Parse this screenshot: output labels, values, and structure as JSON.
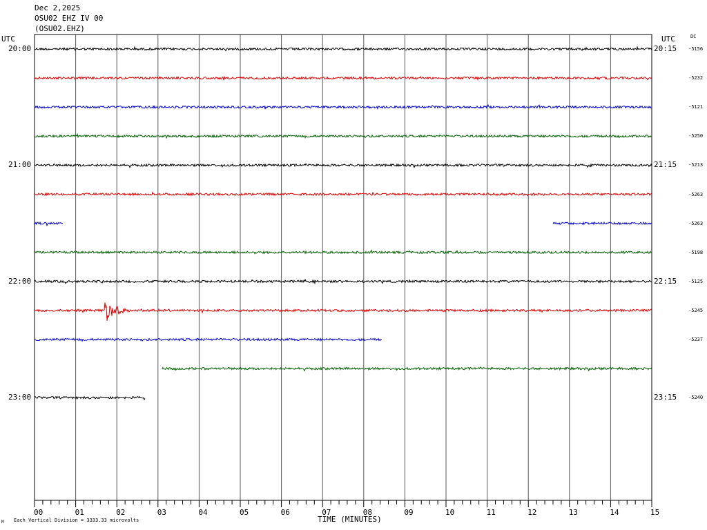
{
  "header": {
    "date": "Dec 2,2025",
    "station": "OSU02 EHZ IV 00",
    "code": "(OSU02.EHZ)"
  },
  "left_axis_label": "UTC",
  "right_axis_label": "UTC",
  "dc_label": "DC",
  "footer_text": "Each Vertical Division = 3333.33 microvolts",
  "corner_glyph": "M",
  "colors": {
    "black": "#000000",
    "red": "#e00000",
    "blue": "#0000d0",
    "green": "#006400"
  },
  "chart_data": {
    "type": "line",
    "xlabel": "TIME (MINUTES)",
    "xlim": [
      0,
      15
    ],
    "x_ticks": [
      "00",
      "01",
      "02",
      "03",
      "04",
      "05",
      "06",
      "07",
      "08",
      "09",
      "10",
      "11",
      "12",
      "13",
      "14",
      "15"
    ],
    "row_count": 16,
    "left_hour_labels": [
      {
        "row": 0,
        "text": "20:00"
      },
      {
        "row": 4,
        "text": "21:00"
      },
      {
        "row": 8,
        "text": "22:00"
      },
      {
        "row": 12,
        "text": "23:00"
      }
    ],
    "right_hour_labels": [
      {
        "row": 0,
        "text": "20:15"
      },
      {
        "row": 4,
        "text": "21:15"
      },
      {
        "row": 8,
        "text": "22:15"
      },
      {
        "row": 12,
        "text": "23:15"
      }
    ],
    "traces": [
      {
        "row": 0,
        "color": "black",
        "dc": "-5156",
        "segments": [
          [
            0,
            15
          ]
        ]
      },
      {
        "row": 1,
        "color": "red",
        "dc": "-5232",
        "segments": [
          [
            0,
            15
          ]
        ]
      },
      {
        "row": 2,
        "color": "blue",
        "dc": "-5121",
        "segments": [
          [
            0,
            15
          ]
        ]
      },
      {
        "row": 3,
        "color": "green",
        "dc": "-5250",
        "segments": [
          [
            0,
            15
          ]
        ]
      },
      {
        "row": 4,
        "color": "black",
        "dc": "-5213",
        "segments": [
          [
            0,
            15
          ]
        ]
      },
      {
        "row": 5,
        "color": "red",
        "dc": "-5263",
        "segments": [
          [
            0,
            15
          ]
        ]
      },
      {
        "row": 6,
        "color": "blue",
        "dc": "-5263",
        "segments": [
          [
            0,
            0.7
          ],
          [
            12.6,
            15
          ]
        ]
      },
      {
        "row": 7,
        "color": "green",
        "dc": "-5198",
        "segments": [
          [
            0,
            15
          ]
        ]
      },
      {
        "row": 8,
        "color": "black",
        "dc": "-5125",
        "segments": [
          [
            0,
            15
          ]
        ]
      },
      {
        "row": 9,
        "color": "red",
        "dc": "-5245",
        "segments": [
          [
            0,
            15
          ]
        ],
        "event": {
          "minute": 1.75,
          "amplitude": 3.0
        }
      },
      {
        "row": 10,
        "color": "blue",
        "dc": "-5237",
        "segments": [
          [
            0,
            8.45
          ]
        ]
      },
      {
        "row": 11,
        "color": "green",
        "dc": "",
        "segments": [
          [
            3.1,
            15
          ]
        ]
      },
      {
        "row": 12,
        "color": "black",
        "dc": "-5240",
        "segments": [
          [
            0,
            2.7
          ]
        ]
      }
    ]
  }
}
